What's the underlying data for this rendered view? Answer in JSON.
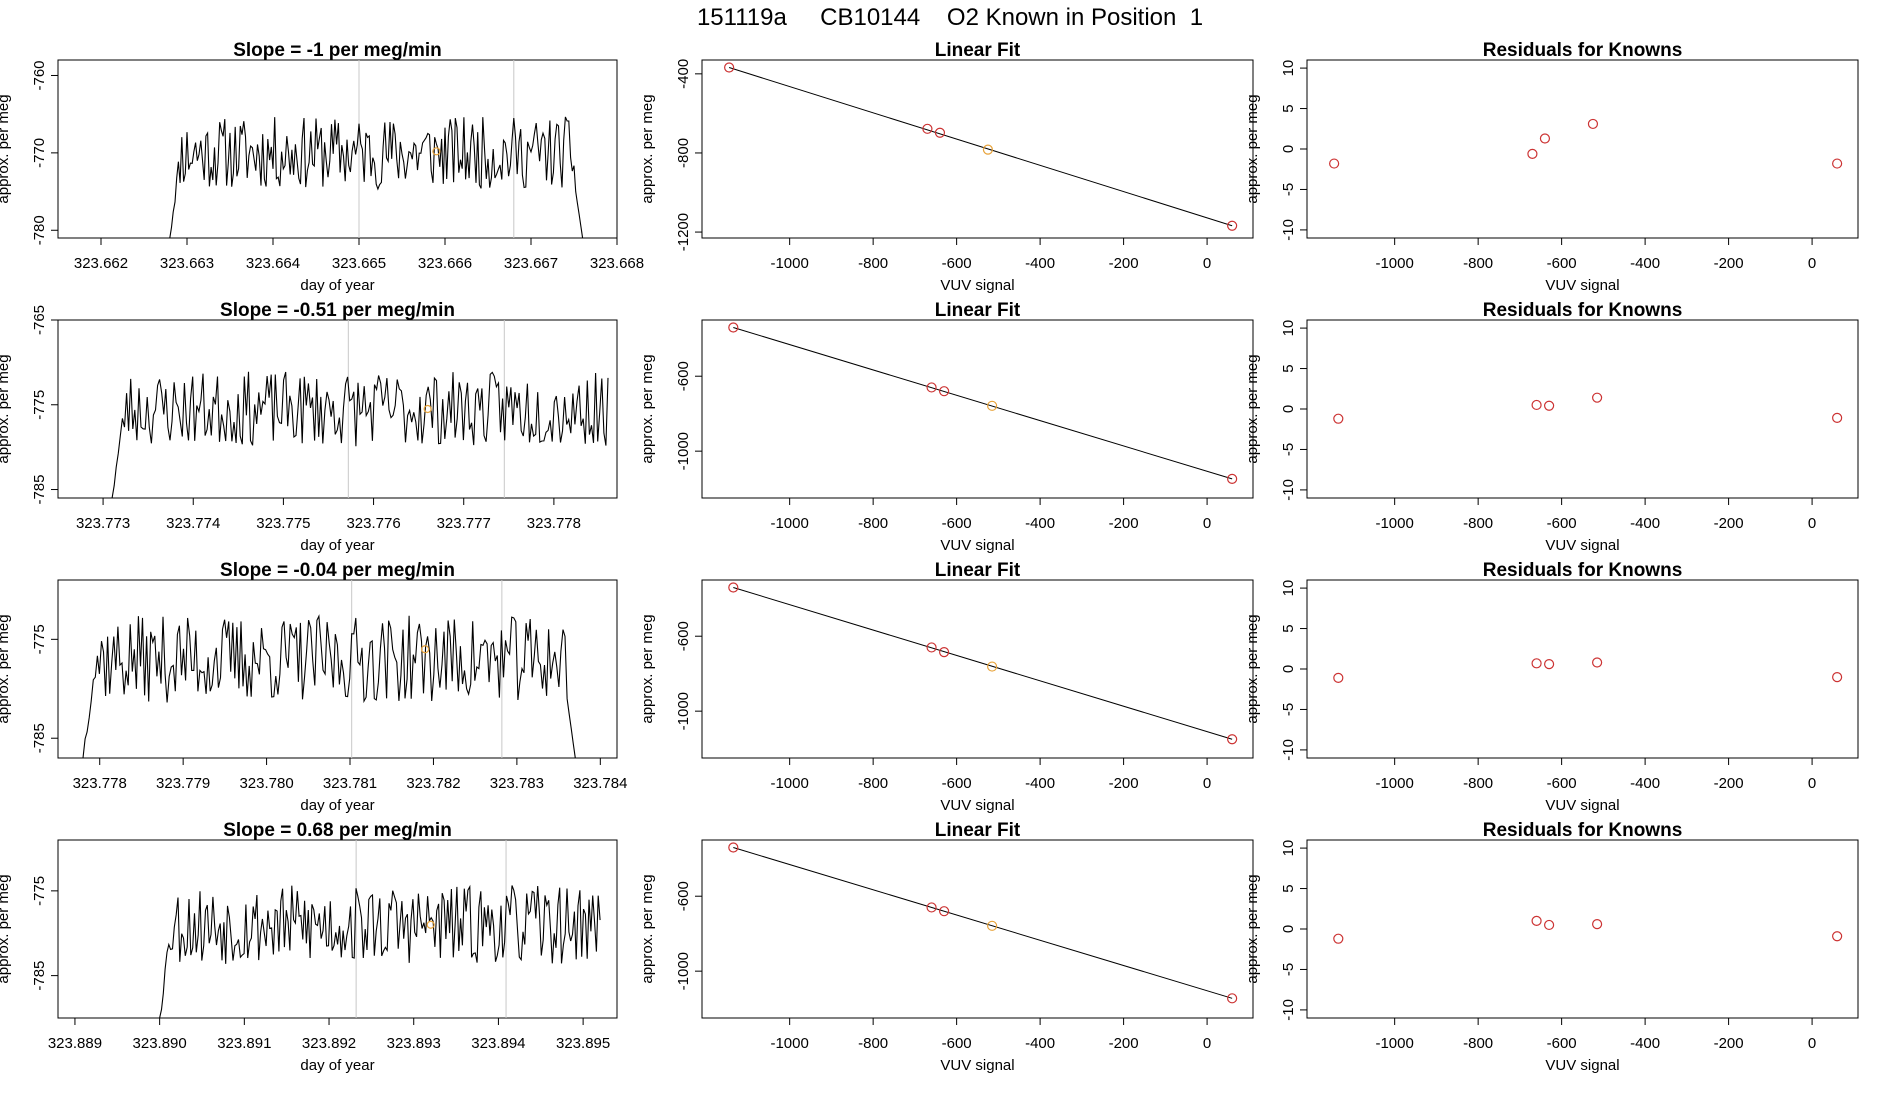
{
  "figure_title": "151119a     CB10144    O2 Known in Position  1",
  "colors": {
    "line": "#000000",
    "known_point": "#e8a33a",
    "fit_point": "#cc3333",
    "marker_line": "#c8c8c8"
  },
  "chart_data": [
    {
      "type": "line",
      "title": "Slope =  -1  per meg/min",
      "xlabel": "day of year",
      "ylabel": "approx. per meg",
      "xlim": [
        323.6615,
        323.668
      ],
      "ylim": [
        -781,
        -758
      ],
      "xticks": [
        "323.662",
        "323.663",
        "323.664",
        "323.665",
        "323.666",
        "323.667",
        "323.668"
      ],
      "yticks": [
        "-760",
        "-770",
        "-780"
      ],
      "vlines": [
        323.665,
        323.6668
      ],
      "start": 323.6628,
      "end": 323.6676,
      "n": 240,
      "yrange": [
        -781,
        -764
      ],
      "drop_end": -781,
      "known_point": [
        323.6659,
        -769.8
      ],
      "base": -770,
      "seed": 11
    },
    {
      "type": "scatter",
      "title": "Linear Fit",
      "xlabel": "VUV signal",
      "ylabel": "approx. per meg",
      "xlim": [
        -1210,
        110
      ],
      "ylim": [
        -1230,
        -330
      ],
      "xticks": [
        "-1000",
        "-800",
        "-600",
        "-400",
        "-200",
        "0"
      ],
      "yticks": [
        "-400",
        "-800",
        "-1200"
      ],
      "points": [
        [
          -1145,
          -368
        ],
        [
          -670,
          -678
        ],
        [
          -640,
          -698
        ],
        [
          -525,
          -783
        ],
        [
          60,
          -1168
        ]
      ],
      "known_index": 3,
      "fit_line": [
        [
          -1145,
          -368
        ],
        [
          60,
          -1168
        ]
      ]
    },
    {
      "type": "scatter",
      "title": "Residuals for Knowns",
      "xlabel": "VUV signal",
      "ylabel": "approx. per meg",
      "xlim": [
        -1210,
        110
      ],
      "ylim": [
        -11,
        11
      ],
      "xticks": [
        "-1000",
        "-800",
        "-600",
        "-400",
        "-200",
        "0"
      ],
      "yticks": [
        "10",
        "5",
        "0",
        "-5",
        "-10"
      ],
      "points": [
        [
          -1145,
          -1.8
        ],
        [
          -670,
          -0.6
        ],
        [
          -640,
          1.3
        ],
        [
          -525,
          3.1
        ],
        [
          60,
          -1.8
        ]
      ]
    },
    {
      "type": "line",
      "title": "Slope =  -0.51  per meg/min",
      "xlabel": "day of year",
      "ylabel": "approx. per meg",
      "xlim": [
        323.7725,
        323.7787
      ],
      "ylim": [
        -786,
        -765
      ],
      "xticks": [
        "323.773",
        "323.774",
        "323.775",
        "323.776",
        "323.777",
        "323.778"
      ],
      "yticks": [
        "-765",
        "-775",
        "-785"
      ],
      "vlines": [
        323.77572,
        323.77745
      ],
      "start": 323.7731,
      "end": 323.7786,
      "n": 240,
      "yrange": [
        -786,
        -770
      ],
      "drop_end": null,
      "known_point": [
        323.7766,
        -775.5
      ],
      "base": -775.5,
      "seed": 23
    },
    {
      "type": "scatter",
      "title": "Linear Fit",
      "xlabel": "VUV signal",
      "ylabel": "approx. per meg",
      "xlim": [
        -1210,
        110
      ],
      "ylim": [
        -1250,
        -300
      ],
      "xticks": [
        "-1000",
        "-800",
        "-600",
        "-400",
        "-200",
        "0"
      ],
      "yticks": [
        "-600",
        "-1000"
      ],
      "points": [
        [
          -1135,
          -340
        ],
        [
          -660,
          -660
        ],
        [
          -630,
          -680
        ],
        [
          -515,
          -758
        ],
        [
          60,
          -1148
        ]
      ],
      "known_index": 3,
      "fit_line": [
        [
          -1135,
          -340
        ],
        [
          60,
          -1148
        ]
      ]
    },
    {
      "type": "scatter",
      "title": "Residuals for Knowns",
      "xlabel": "VUV signal",
      "ylabel": "approx. per meg",
      "xlim": [
        -1210,
        110
      ],
      "ylim": [
        -11,
        11
      ],
      "xticks": [
        "-1000",
        "-800",
        "-600",
        "-400",
        "-200",
        "0"
      ],
      "yticks": [
        "10",
        "5",
        "0",
        "-5",
        "-10"
      ],
      "points": [
        [
          -1135,
          -1.2
        ],
        [
          -660,
          0.5
        ],
        [
          -630,
          0.4
        ],
        [
          -515,
          1.4
        ],
        [
          60,
          -1.1
        ]
      ]
    },
    {
      "type": "line",
      "title": "Slope =  -0.04  per meg/min",
      "xlabel": "day of year",
      "ylabel": "approx. per meg",
      "xlim": [
        323.7775,
        323.7842
      ],
      "ylim": [
        -787,
        -769
      ],
      "xticks": [
        "323.778",
        "323.779",
        "323.780",
        "323.781",
        "323.782",
        "323.783",
        "323.784"
      ],
      "yticks": [
        "-775",
        "-785"
      ],
      "vlines": [
        323.78102,
        323.78282
      ],
      "start": 323.7778,
      "end": 323.7837,
      "n": 240,
      "yrange": [
        -787,
        -771
      ],
      "drop_end": -787,
      "known_point": [
        323.7819,
        -776
      ],
      "base": -777,
      "seed": 37
    },
    {
      "type": "scatter",
      "title": "Linear Fit",
      "xlabel": "VUV signal",
      "ylabel": "approx. per meg",
      "xlim": [
        -1210,
        110
      ],
      "ylim": [
        -1250,
        -300
      ],
      "xticks": [
        "-1000",
        "-800",
        "-600",
        "-400",
        "-200",
        "0"
      ],
      "yticks": [
        "-600",
        "-1000"
      ],
      "points": [
        [
          -1135,
          -340
        ],
        [
          -660,
          -660
        ],
        [
          -630,
          -685
        ],
        [
          -515,
          -762
        ],
        [
          60,
          -1150
        ]
      ],
      "known_index": 3,
      "fit_line": [
        [
          -1135,
          -340
        ],
        [
          60,
          -1150
        ]
      ]
    },
    {
      "type": "scatter",
      "title": "Residuals for Knowns",
      "xlabel": "VUV signal",
      "ylabel": "approx. per meg",
      "xlim": [
        -1210,
        110
      ],
      "ylim": [
        -11,
        11
      ],
      "xticks": [
        "-1000",
        "-800",
        "-600",
        "-400",
        "-200",
        "0"
      ],
      "yticks": [
        "10",
        "5",
        "0",
        "-5",
        "-10"
      ],
      "points": [
        [
          -1135,
          -1.1
        ],
        [
          -660,
          0.7
        ],
        [
          -630,
          0.6
        ],
        [
          -515,
          0.8
        ],
        [
          60,
          -1.0
        ]
      ]
    },
    {
      "type": "line",
      "title": "Slope =  0.68  per meg/min",
      "xlabel": "day of year",
      "ylabel": "approx. per meg",
      "xlim": [
        323.8888,
        323.8954
      ],
      "ylim": [
        -790,
        -769
      ],
      "xticks": [
        "323.889",
        "323.890",
        "323.891",
        "323.892",
        "323.893",
        "323.894",
        "323.895"
      ],
      "yticks": [
        "-775",
        "-785"
      ],
      "vlines": [
        323.89232,
        323.89409
      ],
      "start": 323.89,
      "end": 323.8952,
      "n": 240,
      "yrange": [
        -790,
        -773
      ],
      "drop_end": null,
      "known_point": [
        323.8932,
        -779
      ],
      "base": -779,
      "seed": 53
    },
    {
      "type": "scatter",
      "title": "Linear Fit",
      "xlabel": "VUV signal",
      "ylabel": "approx. per meg",
      "xlim": [
        -1210,
        110
      ],
      "ylim": [
        -1250,
        -300
      ],
      "xticks": [
        "-1000",
        "-800",
        "-600",
        "-400",
        "-200",
        "0"
      ],
      "yticks": [
        "-600",
        "-1000"
      ],
      "points": [
        [
          -1135,
          -340
        ],
        [
          -660,
          -660
        ],
        [
          -630,
          -680
        ],
        [
          -515,
          -758
        ],
        [
          60,
          -1145
        ]
      ],
      "known_index": 3,
      "fit_line": [
        [
          -1135,
          -340
        ],
        [
          60,
          -1145
        ]
      ]
    },
    {
      "type": "scatter",
      "title": "Residuals for Knowns",
      "xlabel": "VUV signal",
      "ylabel": "approx. per meg",
      "xlim": [
        -1210,
        110
      ],
      "ylim": [
        -11,
        11
      ],
      "xticks": [
        "-1000",
        "-800",
        "-600",
        "-400",
        "-200",
        "0"
      ],
      "yticks": [
        "10",
        "5",
        "0",
        "-5",
        "-10"
      ],
      "points": [
        [
          -1135,
          -1.2
        ],
        [
          -660,
          1.0
        ],
        [
          -630,
          0.5
        ],
        [
          -515,
          0.6
        ],
        [
          60,
          -0.9
        ]
      ]
    }
  ]
}
